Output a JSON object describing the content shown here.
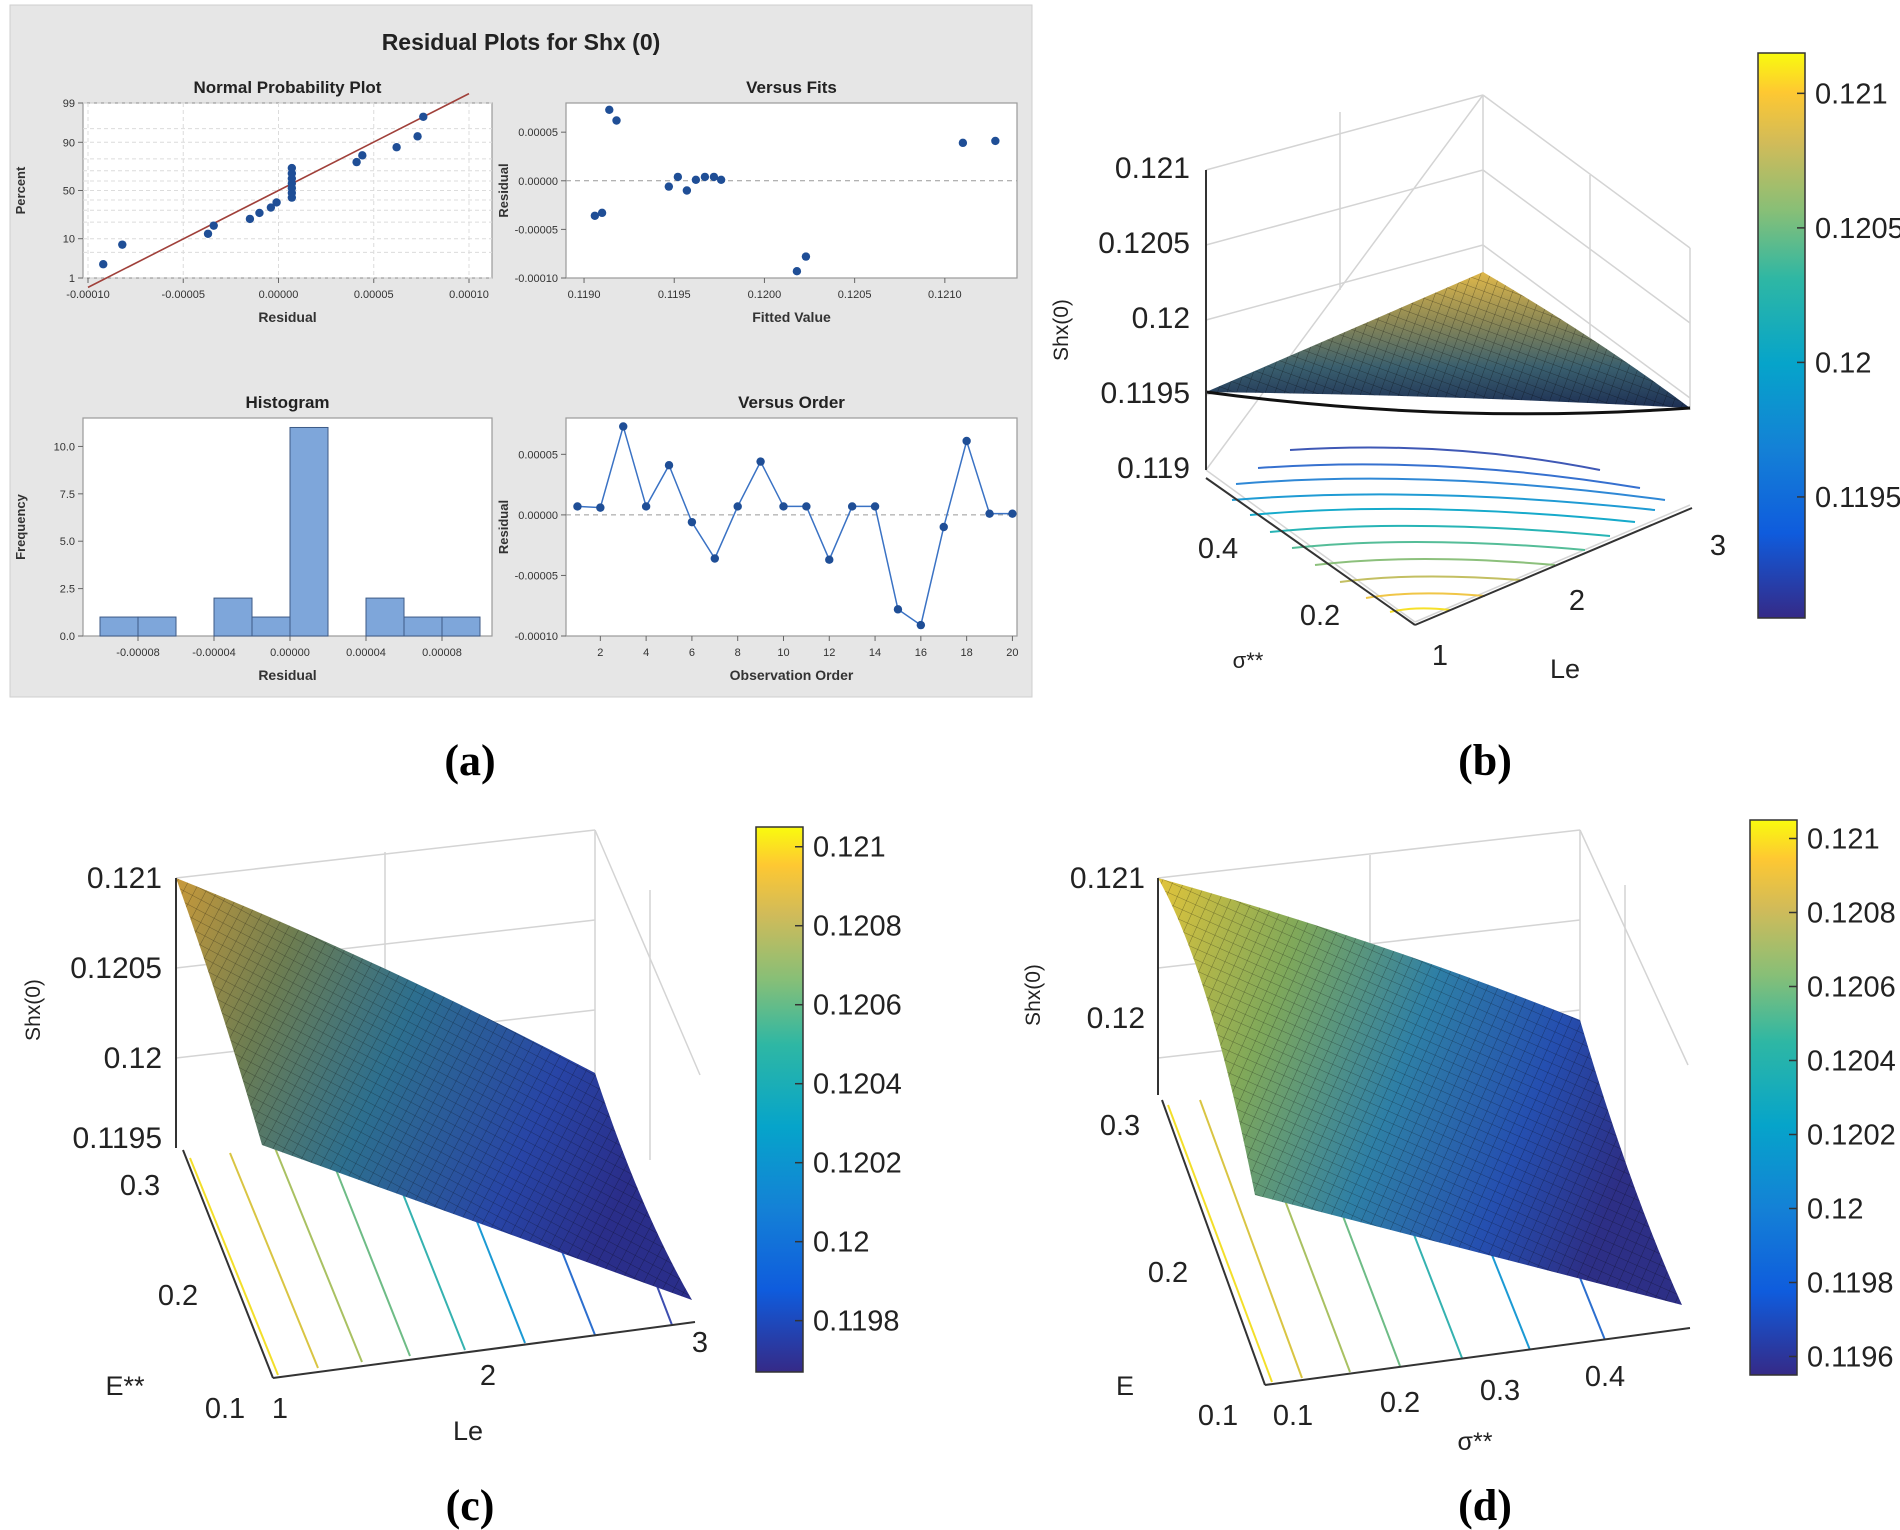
{
  "panel_labels": [
    "(a)",
    "(b)",
    "(c)",
    "(d)"
  ],
  "chart_data": [
    {
      "panel": "(a)",
      "figure_title": "Residual Plots for Shx (0)",
      "subplots": [
        {
          "type": "scatter",
          "title": "Normal Probability Plot",
          "xlabel": "Residual",
          "ylabel": "Percent",
          "xlim": [
            -0.0001,
            0.0001
          ],
          "xticks": [
            "-0.00010",
            "-0.00005",
            "0.00000",
            "0.00005",
            "0.00010"
          ],
          "yticks": [
            "1",
            "10",
            "50",
            "90",
            "99"
          ],
          "fit_line": [
            [
              -0.0001,
              0.5
            ],
            [
              0.0001,
              99.5
            ]
          ],
          "points": [
            [
              -9.2e-05,
              2.5
            ],
            [
              -8.2e-05,
              7.5
            ],
            [
              -3.7e-05,
              12.5
            ],
            [
              -3.4e-05,
              17.5
            ],
            [
              -1.5e-05,
              22.5
            ],
            [
              -1e-05,
              27.5
            ],
            [
              -4e-06,
              32.5
            ],
            [
              -1e-06,
              37.5
            ],
            [
              7e-06,
              42.5
            ],
            [
              7e-06,
              47.5
            ],
            [
              7e-06,
              52.5
            ],
            [
              7e-06,
              57.5
            ],
            [
              7e-06,
              62.5
            ],
            [
              7e-06,
              67.5
            ],
            [
              7e-06,
              72.5
            ],
            [
              4.1e-05,
              77.5
            ],
            [
              4.4e-05,
              82.5
            ],
            [
              6.2e-05,
              87.5
            ],
            [
              7.3e-05,
              92.5
            ],
            [
              7.6e-05,
              97.5
            ]
          ]
        },
        {
          "type": "scatter",
          "title": "Versus Fits",
          "xlabel": "Fitted Value",
          "ylabel": "Residual",
          "xlim": [
            0.1189,
            0.1214
          ],
          "ylim": [
            -0.0001,
            8e-05
          ],
          "xticks": [
            "0.1190",
            "0.1195",
            "0.1200",
            "0.1205",
            "0.1210"
          ],
          "yticks": [
            "0.00005",
            "0.00000",
            "-0.00005",
            "-0.00010"
          ],
          "points": [
            [
              0.11906,
              -3.6e-05
            ],
            [
              0.1191,
              -3.3e-05
            ],
            [
              0.11914,
              7.3e-05
            ],
            [
              0.11918,
              6.2e-05
            ],
            [
              0.11947,
              -6e-06
            ],
            [
              0.11952,
              4e-06
            ],
            [
              0.11957,
              -1e-05
            ],
            [
              0.11962,
              1e-06
            ],
            [
              0.11967,
              4e-06
            ],
            [
              0.11972,
              4e-06
            ],
            [
              0.11976,
              1e-06
            ],
            [
              0.12018,
              -9.3e-05
            ],
            [
              0.12023,
              -7.8e-05
            ],
            [
              0.1211,
              3.9e-05
            ],
            [
              0.12128,
              4.1e-05
            ]
          ]
        },
        {
          "type": "bar",
          "title": "Histogram",
          "xlabel": "Residual",
          "ylabel": "Frequency",
          "ylim": [
            0,
            11.5
          ],
          "xticks": [
            "-0.00008",
            "-0.00004",
            "0.00000",
            "0.00004",
            "0.00008"
          ],
          "yticks": [
            "0.0",
            "2.5",
            "5.0",
            "7.5",
            "10.0"
          ],
          "bins": [
            -0.0001,
            -8e-05,
            -6e-05,
            -4e-05,
            -2e-05,
            0.0,
            2e-05,
            4e-05,
            6e-05,
            8e-05,
            0.0001
          ],
          "values": [
            1,
            1,
            0,
            2,
            1,
            11,
            0,
            2,
            1,
            1
          ]
        },
        {
          "type": "line",
          "title": "Versus Order",
          "xlabel": "Observation Order",
          "ylabel": "Residual",
          "ylim": [
            -0.0001,
            8e-05
          ],
          "xticks": [
            "2",
            "4",
            "6",
            "8",
            "10",
            "12",
            "14",
            "16",
            "18",
            "20"
          ],
          "yticks": [
            "0.00005",
            "0.00000",
            "-0.00005",
            "-0.00010"
          ],
          "x": [
            1,
            2,
            3,
            4,
            5,
            6,
            7,
            8,
            9,
            10,
            11,
            12,
            13,
            14,
            15,
            16,
            17,
            18,
            19,
            20
          ],
          "values": [
            7e-06,
            6e-06,
            7.3e-05,
            7e-06,
            4.1e-05,
            -6e-06,
            -3.6e-05,
            7e-06,
            4.4e-05,
            7e-06,
            7e-06,
            -3.7e-05,
            7e-06,
            7e-06,
            -7.8e-05,
            -9.1e-05,
            -1e-05,
            6.1e-05,
            1e-06,
            1e-06
          ]
        }
      ]
    },
    {
      "panel": "(b)",
      "type": "surface",
      "zlabel": "Shx(0)",
      "xlabel": "Le",
      "ylabel": "σ**",
      "zticks": [
        "0.121",
        "0.1205",
        "0.12",
        "0.1195",
        "0.119"
      ],
      "xticks": [
        "1",
        "2",
        "3"
      ],
      "yticks": [
        "0.2",
        "0.4"
      ],
      "colorbar_ticks": [
        "0.121",
        "0.1205",
        "0.12",
        "0.1195"
      ],
      "colorbar_range": [
        0.11905,
        0.12115
      ]
    },
    {
      "panel": "(c)",
      "type": "surface",
      "zlabel": "Shx(0)",
      "xlabel": "Le",
      "ylabel": "E**",
      "zticks": [
        "0.121",
        "0.1205",
        "0.12",
        "0.1195"
      ],
      "xticks": [
        "1",
        "2",
        "3"
      ],
      "yticks": [
        "0.3",
        "0.2",
        "0.1"
      ],
      "colorbar_ticks": [
        "0.121",
        "0.1208",
        "0.1206",
        "0.1204",
        "0.1202",
        "0.12",
        "0.1198"
      ],
      "colorbar_range": [
        0.11967,
        0.12105
      ]
    },
    {
      "panel": "(d)",
      "type": "surface",
      "zlabel": "Shx(0)",
      "xlabel": "σ**",
      "ylabel": "E",
      "zticks": [
        "0.121",
        "0.12"
      ],
      "xticks": [
        "0.1",
        "0.2",
        "0.3",
        "0.4"
      ],
      "yticks": [
        "0.3",
        "0.2",
        "0.1"
      ],
      "colorbar_ticks": [
        "0.121",
        "0.1208",
        "0.1206",
        "0.1204",
        "0.1202",
        "0.12",
        "0.1198",
        "0.1196"
      ],
      "colorbar_range": [
        0.11955,
        0.12105
      ]
    }
  ]
}
